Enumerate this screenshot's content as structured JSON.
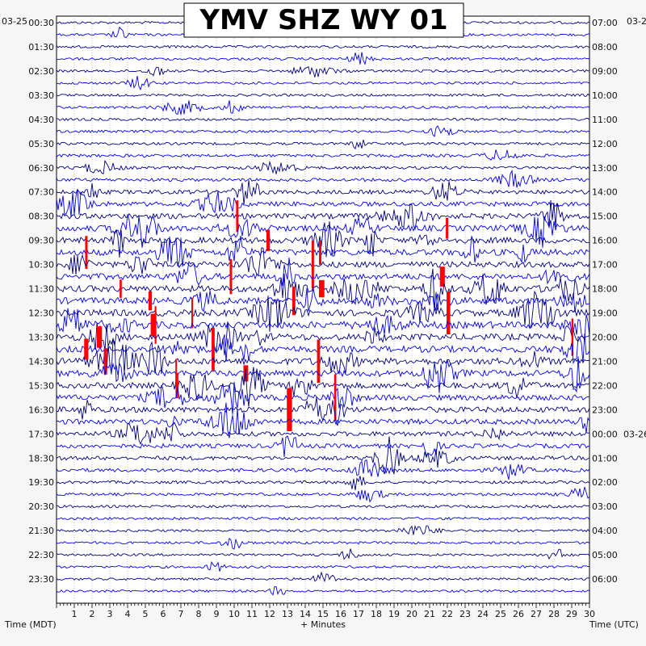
{
  "chart_data": {
    "type": "line",
    "title": "YMV SHZ WY 01",
    "left_axis_title": "Time (MDT)",
    "right_axis_title": "Time (UTC)",
    "x_axis_title": "+ Minutes",
    "left_date": "03-25",
    "right_date_top": "03-2",
    "right_date_change": "03-26",
    "x_range_minutes": [
      0,
      30
    ],
    "x_ticks": [
      "1",
      "2",
      "3",
      "4",
      "5",
      "6",
      "7",
      "8",
      "9",
      "10",
      "11",
      "12",
      "13",
      "14",
      "15",
      "16",
      "17",
      "18",
      "19",
      "20",
      "21",
      "22",
      "23",
      "24",
      "25",
      "26",
      "27",
      "28",
      "29",
      "30"
    ],
    "left_hour_labels": [
      "00:30",
      "01:30",
      "02:30",
      "03:30",
      "04:30",
      "05:30",
      "06:30",
      "07:30",
      "08:30",
      "09:30",
      "10:30",
      "11:30",
      "12:30",
      "13:30",
      "14:30",
      "15:30",
      "16:30",
      "17:30",
      "18:30",
      "19:30",
      "20:30",
      "21:30",
      "22:30",
      "23:30"
    ],
    "right_hour_labels": [
      "07:00",
      "08:00",
      "09:00",
      "10:00",
      "11:00",
      "12:00",
      "13:00",
      "14:00",
      "15:00",
      "16:00",
      "17:00",
      "18:00",
      "19:00",
      "20:00",
      "21:00",
      "22:00",
      "23:00",
      "00:00",
      "01:00",
      "02:00",
      "03:00",
      "04:00",
      "05:00",
      "06:00"
    ],
    "trace_count": 48,
    "trace_colors": [
      "#000080",
      "#0000ff"
    ],
    "clip_color": "#ff0000",
    "grid": true,
    "activity_per_trace": [
      0.08,
      0.07,
      0.1,
      0.09,
      0.09,
      0.08,
      0.07,
      0.09,
      0.1,
      0.09,
      0.12,
      0.15,
      0.14,
      0.2,
      0.35,
      0.4,
      0.55,
      0.6,
      0.6,
      0.65,
      0.6,
      0.65,
      0.65,
      0.7,
      0.7,
      0.75,
      0.7,
      0.7,
      0.7,
      0.65,
      0.6,
      0.55,
      0.55,
      0.5,
      0.4,
      0.35,
      0.3,
      0.25,
      0.15,
      0.12,
      0.1,
      0.1,
      0.08,
      0.08,
      0.07,
      0.07,
      0.06,
      0.06
    ]
  }
}
